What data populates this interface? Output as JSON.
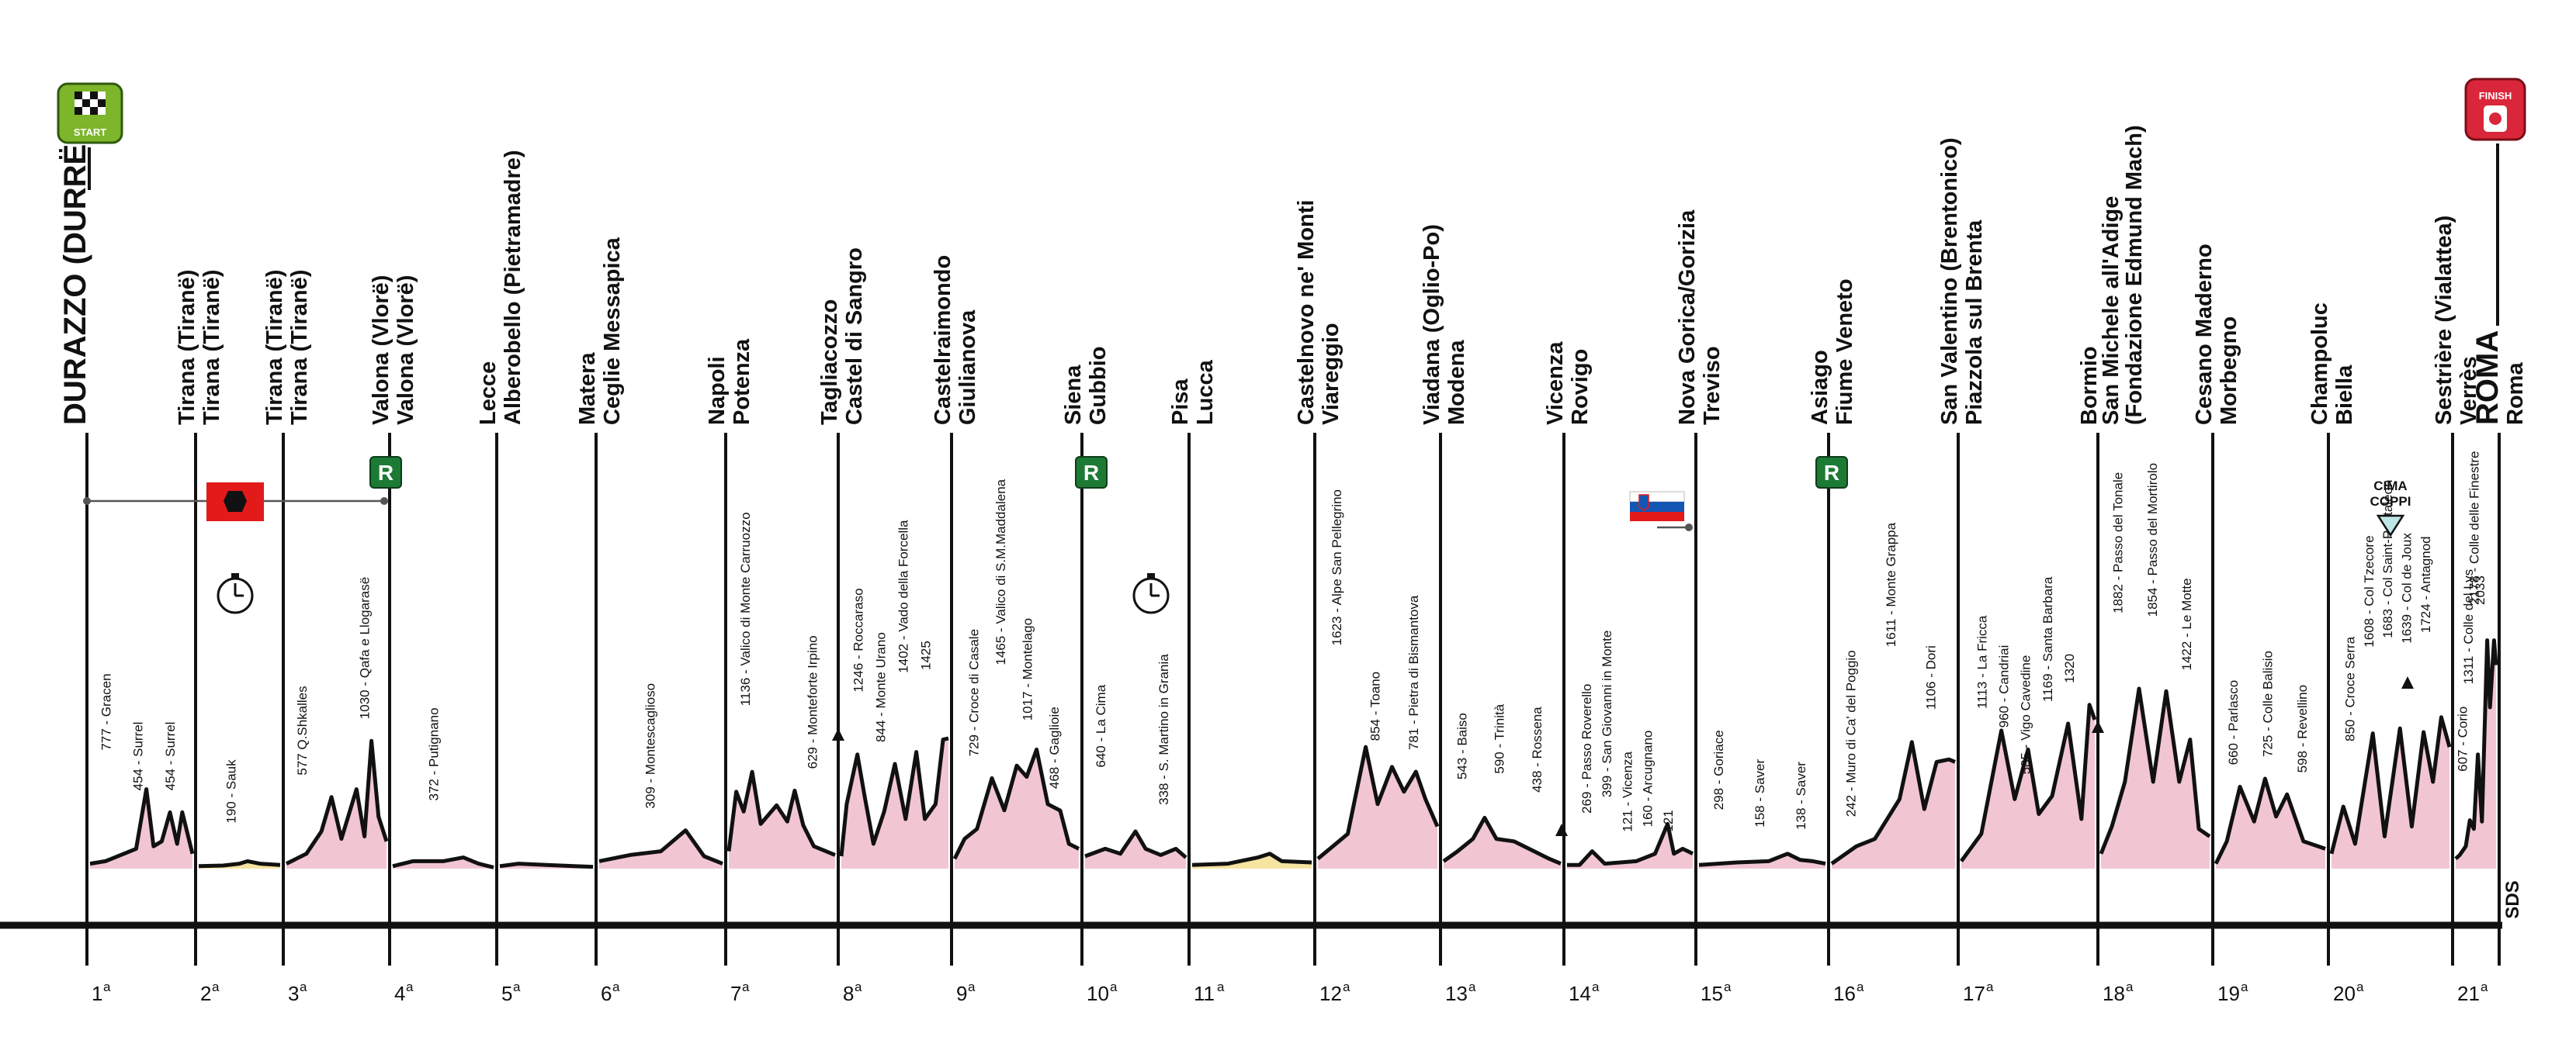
{
  "start_label": "START",
  "finish_label": "FINISH",
  "cima_coppi_label": "CIMA\nCOPPI",
  "rest_marker": "R",
  "watermark": "SDS",
  "colors": {
    "profile_fill": "#f1c6d2",
    "tt_fill": "#f6e3a0",
    "outline": "#111111",
    "rest_green": "#1d7a34",
    "albania_red": "#e21a1a",
    "start_green": "#7db52b",
    "finish_red": "#d9263a"
  },
  "stages": [
    {
      "num": "1",
      "type": "road",
      "start": "DURAZZO (DURRËS)",
      "finish": "Tirana (Tiranë)",
      "climbs": [
        {
          "label": "777 - Gracen",
          "elev": 777
        },
        {
          "label": "454 - Surrel",
          "elev": 454
        },
        {
          "label": "454 - Surrel",
          "elev": 454
        }
      ]
    },
    {
      "num": "2",
      "type": "tt",
      "start": "Tirana (Tiranë)",
      "finish": "Tirana (Tiranë)",
      "climbs": [
        {
          "label": "190 - Sauk",
          "elev": 190
        }
      ]
    },
    {
      "num": "3",
      "type": "road",
      "start": "Tirana (Tiranë)",
      "finish": "Valona (Vlorë)",
      "climbs": [
        {
          "label": "577 Q.Shkalles",
          "elev": 577
        },
        {
          "label": "1030 - Qafa e Llogarasë",
          "elev": 1030
        }
      ]
    },
    {
      "num": "4",
      "type": "road",
      "start": "Valona (Vlorë)",
      "finish": "Alberobello (Pietramadre)",
      "climbs": [
        {
          "label": "372 - Putignano",
          "elev": 372
        }
      ]
    },
    {
      "num": "5",
      "type": "road",
      "start": "Lecce",
      "finish": "Ceglie Messapica",
      "climbs": []
    },
    {
      "num": "6",
      "type": "road",
      "start": "Matera",
      "finish": "Potenza",
      "climbs": [
        {
          "label": "309 - Montescaglioso",
          "elev": 309
        }
      ]
    },
    {
      "num": "7",
      "type": "road",
      "start": "Napoli",
      "finish": "Castel di Sangro",
      "climbs": [
        {
          "label": "1136 - Valico di Monte Carruozzo",
          "elev": 1136
        },
        {
          "label": "629 - Monteforte Irpino",
          "elev": 629
        }
      ]
    },
    {
      "num": "8",
      "type": "road",
      "start": "Tagliacozzo",
      "finish": "Giulianova",
      "climbs": [
        {
          "label": "1246 - Roccaraso",
          "elev": 1246
        },
        {
          "label": "844 - Monte Urano",
          "elev": 844
        },
        {
          "label": "1402 - Vado della Forcella",
          "elev": 1402
        },
        {
          "label": "1425",
          "elev": 1425
        }
      ]
    },
    {
      "num": "9",
      "type": "road",
      "start": "Castelraimondo",
      "finish": "Gubbio",
      "climbs": [
        {
          "label": "729 - Croce di Casale",
          "elev": 729
        },
        {
          "label": "1465 - Valico di S.M.Maddalena",
          "elev": 1465
        },
        {
          "label": "1017 - Montelago",
          "elev": 1017
        },
        {
          "label": "468 - Gaglioie",
          "elev": 468
        }
      ]
    },
    {
      "num": "10",
      "type": "road",
      "start": "Siena",
      "finish": "Lucca",
      "climbs": [
        {
          "label": "640 - La Cima",
          "elev": 640
        },
        {
          "label": "338 - S. Martino in Grania",
          "elev": 338
        }
      ]
    },
    {
      "num": "11",
      "type": "tt",
      "start": "Pisa",
      "finish": "Viareggio",
      "climbs": []
    },
    {
      "num": "12",
      "type": "road",
      "start": "Castelnovo ne' Monti",
      "finish": "Modena",
      "climbs": [
        {
          "label": "1623 - Alpe San Pellegrino",
          "elev": 1623
        },
        {
          "label": "854 - Toano",
          "elev": 854
        },
        {
          "label": "781 - Pietra di Bismantova",
          "elev": 781
        }
      ]
    },
    {
      "num": "13",
      "type": "road",
      "start": "Viadana (Oglio-Po)",
      "finish": "Rovigo",
      "climbs": [
        {
          "label": "543 - Baiso",
          "elev": 543
        },
        {
          "label": "590 - Trinità",
          "elev": 590
        },
        {
          "label": "438 - Rossena",
          "elev": 438
        }
      ]
    },
    {
      "num": "14",
      "type": "road",
      "start": "Vicenza",
      "finish": "Treviso",
      "climbs": [
        {
          "label": "269 - Passo Roverello",
          "elev": 269
        },
        {
          "label": "399 - San Giovanni in Monte",
          "elev": 399
        },
        {
          "label": "121 - Vicenza",
          "elev": 121
        },
        {
          "label": "160 - Arcugnano",
          "elev": 160
        },
        {
          "label": "121",
          "elev": 121
        }
      ]
    },
    {
      "num": "15",
      "type": "road",
      "start": "Nova Gorica/Gorizia",
      "finish": "Fiume Veneto",
      "climbs": [
        {
          "label": "298 - Goriace",
          "elev": 298
        },
        {
          "label": "158 - Saver",
          "elev": 158
        },
        {
          "label": "138 - Saver",
          "elev": 138
        }
      ]
    },
    {
      "num": "16",
      "type": "road",
      "start": "Asiago",
      "finish": "Piazzola sul Brenta",
      "climbs": [
        {
          "label": "242 - Muro di Ca' del Poggio",
          "elev": 242
        },
        {
          "label": "1611 - Monte Grappa",
          "elev": 1611
        },
        {
          "label": "1106 - Dori",
          "elev": 1106
        }
      ]
    },
    {
      "num": "17",
      "type": "road",
      "start": "San Valentino (Brentonico)",
      "finish": "San Michele all'Adige\n(Fondazione Edmund Mach)",
      "climbs": [
        {
          "label": "1113 - La Fricca",
          "elev": 1113
        },
        {
          "label": "960 - Candriai",
          "elev": 960
        },
        {
          "label": "585 - Vigo Cavedine",
          "elev": 585
        },
        {
          "label": "1169 - Santa Barbara",
          "elev": 1169
        },
        {
          "label": "1320",
          "elev": 1320
        }
      ]
    },
    {
      "num": "18",
      "type": "road",
      "start": "Bormio",
      "finish": "Morbegno",
      "climbs": [
        {
          "label": "1882 - Passo del Tonale",
          "elev": 1882
        },
        {
          "label": "1854 - Passo del Mortirolo",
          "elev": 1854
        },
        {
          "label": "1422 - Le Motte",
          "elev": 1422
        }
      ]
    },
    {
      "num": "19",
      "type": "road",
      "start": "Cesano Maderno",
      "finish": "Biella",
      "climbs": [
        {
          "label": "660 - Parlasco",
          "elev": 660
        },
        {
          "label": "725 - Colle Balisio",
          "elev": 725
        },
        {
          "label": "598 - Revellino",
          "elev": 598
        }
      ]
    },
    {
      "num": "20",
      "type": "road",
      "start": "Champoluc",
      "finish": "Verrès",
      "climbs": [
        {
          "label": "850 - Croce Serra",
          "elev": 850
        },
        {
          "label": "1608 - Col Tzecore",
          "elev": 1608
        },
        {
          "label": "1683 - Col Saint-Pantaléon",
          "elev": 1683
        },
        {
          "label": "1639 - Col de Joux",
          "elev": 1639
        },
        {
          "label": "1724 - Antagnod",
          "elev": 1724
        }
      ]
    },
    {
      "num": "21",
      "type": "road",
      "start": "Sestrière (Vialattea)",
      "finish": "Roma",
      "climbs": [
        {
          "label": "607 - Corio",
          "elev": 607
        },
        {
          "label": "1311 - Colle del Lys",
          "elev": 1311
        },
        {
          "label": "2178 - Colle delle Finestre",
          "elev": 2178
        },
        {
          "label": "2033",
          "elev": 2033
        }
      ]
    },
    {
      "num": "",
      "type": "final",
      "start": "ROMA",
      "finish": "",
      "climbs": []
    }
  ]
}
